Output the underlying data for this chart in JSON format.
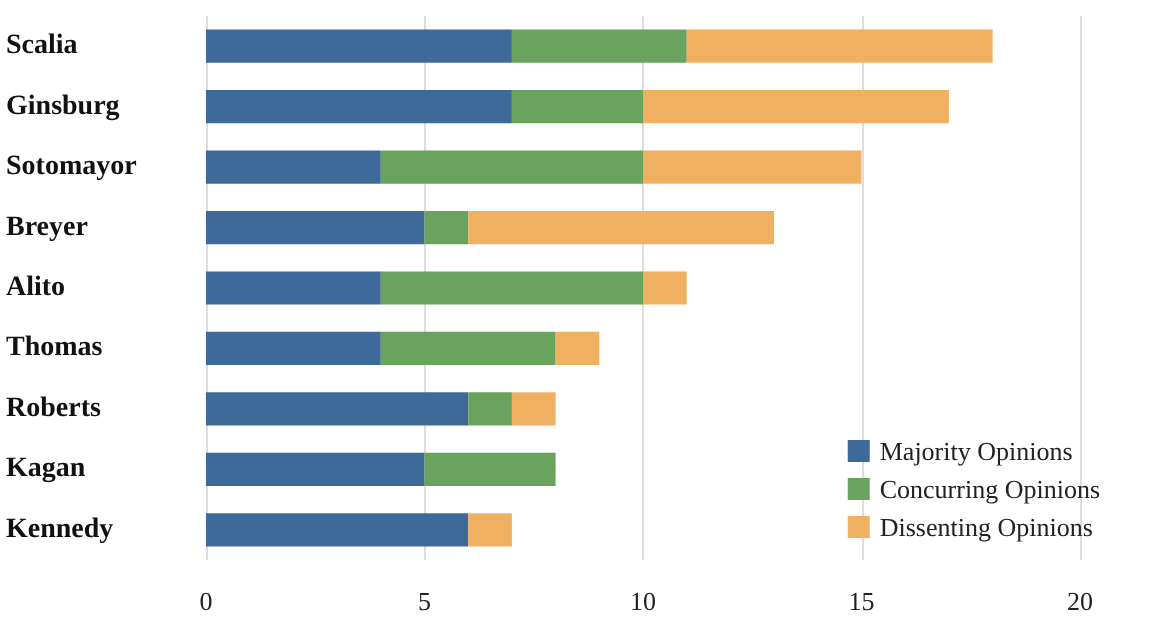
{
  "chart_data": {
    "type": "bar",
    "orientation": "horizontal",
    "stacked": true,
    "categories": [
      "Scalia",
      "Ginsburg",
      "Sotomayor",
      "Breyer",
      "Alito",
      "Thomas",
      "Roberts",
      "Kagan",
      "Kennedy"
    ],
    "series": [
      {
        "name": "Majority Opinions",
        "color": "#3d6a99",
        "values": [
          7,
          7,
          4,
          5,
          4,
          4,
          6,
          5,
          6
        ]
      },
      {
        "name": "Concurring Opinions",
        "color": "#6aa35e",
        "values": [
          4,
          3,
          6,
          1,
          6,
          4,
          1,
          3,
          0
        ]
      },
      {
        "name": "Dissenting Opinions",
        "color": "#f0b062",
        "values": [
          7,
          7,
          5,
          7,
          1,
          1,
          1,
          0,
          1
        ]
      }
    ],
    "xlim": [
      0,
      20
    ],
    "xticks": [
      0,
      5,
      10,
      15,
      20
    ],
    "grid": "x",
    "legend": "bottom right"
  }
}
